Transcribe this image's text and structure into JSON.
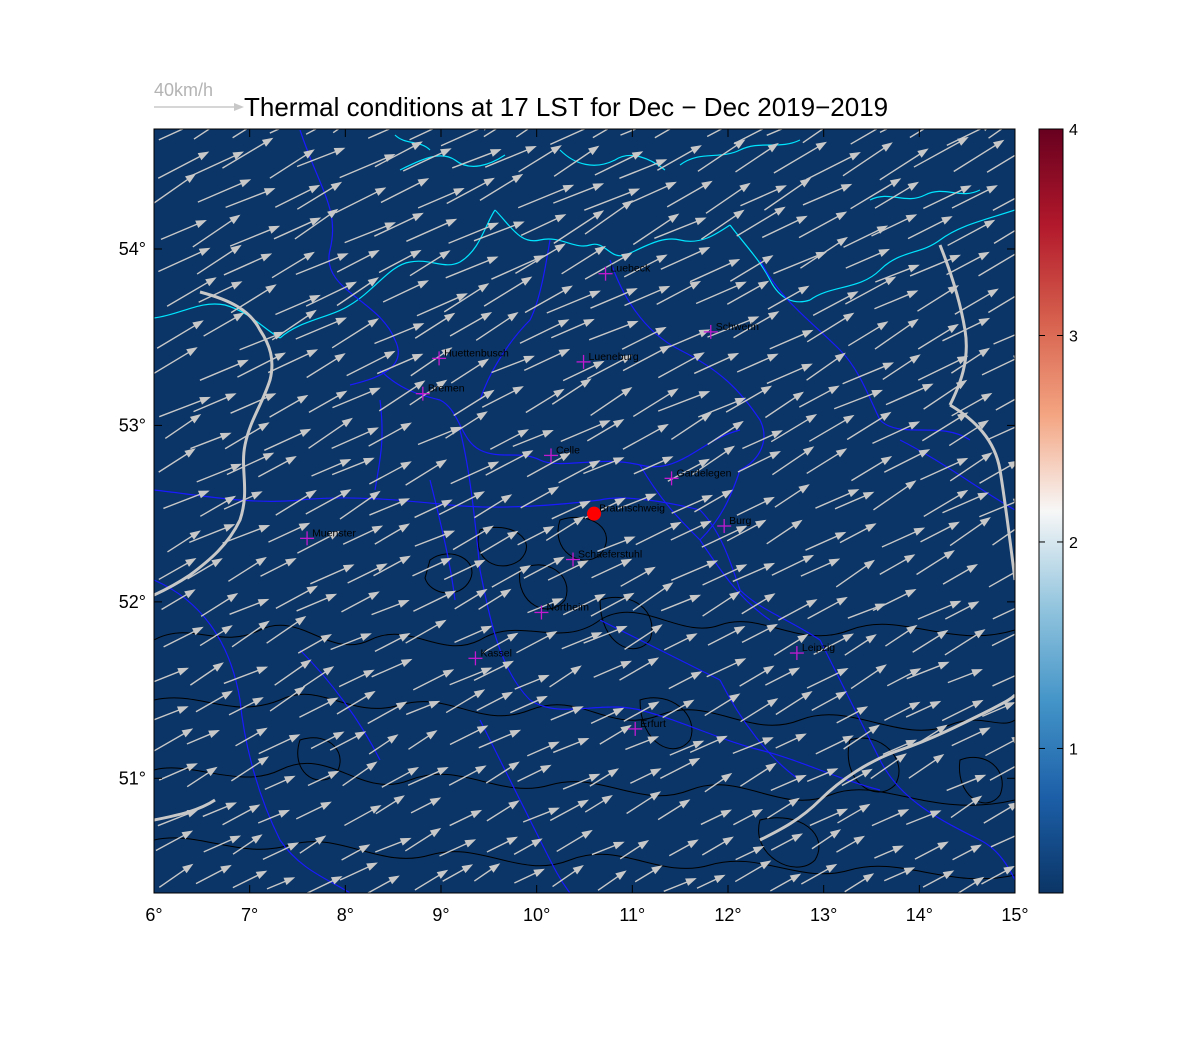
{
  "title": "Thermal conditions at 17 LST for Dec − Dec  2019−2019",
  "scale": {
    "label": "40km/h"
  },
  "colors": {
    "ocean": "#0b3566",
    "coast": "#00e5ff",
    "border": "#1a1aff",
    "contour": "#000000",
    "river": "#c8c8c8",
    "arrow": "#c8c8c8",
    "city_marker": "#c21ad1",
    "origin": "#ff0000"
  },
  "map": {
    "lon_range": [
      6,
      15
    ],
    "lat_range": [
      50.35,
      54.68
    ],
    "x_ticks": [
      "6°",
      "7°",
      "8°",
      "9°",
      "10°",
      "11°",
      "12°",
      "13°",
      "14°",
      "15°"
    ],
    "y_ticks": [
      {
        "lat": 54,
        "label": "54°"
      },
      {
        "lat": 53,
        "label": "53°"
      },
      {
        "lat": 52,
        "label": "52°"
      },
      {
        "lat": 51,
        "label": "51°"
      }
    ],
    "wind": {
      "direction_deg_from_east": 28
    }
  },
  "origin": {
    "lon": 10.6,
    "lat": 52.5,
    "name": "Braunschweig"
  },
  "cities": [
    {
      "name": "Luebeck",
      "lon": 10.72,
      "lat": 53.86
    },
    {
      "name": "Schwerin",
      "lon": 11.82,
      "lat": 53.53
    },
    {
      "name": "Huettenbusch",
      "lon": 8.98,
      "lat": 53.38
    },
    {
      "name": "Lueneburg",
      "lon": 10.49,
      "lat": 53.36
    },
    {
      "name": "Bremen",
      "lon": 8.81,
      "lat": 53.18
    },
    {
      "name": "Celle",
      "lon": 10.15,
      "lat": 52.83
    },
    {
      "name": "Gardelegen",
      "lon": 11.41,
      "lat": 52.7
    },
    {
      "name": "Braunschweig",
      "lon": 10.6,
      "lat": 52.5
    },
    {
      "name": "Burg",
      "lon": 11.96,
      "lat": 52.43
    },
    {
      "name": "Muenster",
      "lon": 7.6,
      "lat": 52.36
    },
    {
      "name": "Schaeferstuhl",
      "lon": 10.38,
      "lat": 52.24
    },
    {
      "name": "Northeim",
      "lon": 10.05,
      "lat": 51.94
    },
    {
      "name": "Leipzig",
      "lon": 12.72,
      "lat": 51.71
    },
    {
      "name": "Kassel",
      "lon": 9.36,
      "lat": 51.68
    },
    {
      "name": "Erfurt",
      "lon": 11.03,
      "lat": 51.28
    }
  ],
  "colorbar": {
    "range": [
      0.3,
      4
    ],
    "ticks": [
      {
        "value": 1,
        "label": "1"
      },
      {
        "value": 2,
        "label": "2"
      },
      {
        "value": 3,
        "label": "3"
      },
      {
        "value": 4,
        "label": "4"
      }
    ],
    "stops": [
      "#0b3566",
      "#1c5fa8",
      "#4394c8",
      "#93c5de",
      "#f7f7f7",
      "#f4a582",
      "#d6604d",
      "#b2182b",
      "#67001f"
    ]
  }
}
